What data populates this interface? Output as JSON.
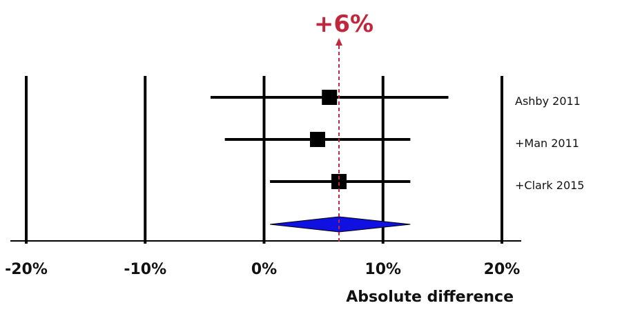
{
  "chart_data": {
    "type": "forest",
    "xlabel": "Absolute difference",
    "xlim": [
      -20,
      20
    ],
    "ticks": [
      {
        "value": -20,
        "label": "-20%"
      },
      {
        "value": -10,
        "label": "-10%"
      },
      {
        "value": 0,
        "label": "0%"
      },
      {
        "value": 10,
        "label": "10%"
      },
      {
        "value": 20,
        "label": "20%"
      }
    ],
    "grid": true,
    "studies": [
      {
        "label": "Ashby 2011",
        "estimate": 5.5,
        "ci": [
          -4.5,
          15.5
        ]
      },
      {
        "label": "+Man 2011",
        "estimate": 4.5,
        "ci": [
          -3.3,
          12.3
        ]
      },
      {
        "label": "+Clark 2015",
        "estimate": 6.3,
        "ci": [
          0.5,
          12.3
        ]
      }
    ],
    "pooled": {
      "estimate": 6.3,
      "ci": [
        0.5,
        12.3
      ],
      "color": "#1010e0"
    },
    "reference_line": {
      "value": 6.3,
      "label": "+6%",
      "color": "#c0273d"
    }
  }
}
